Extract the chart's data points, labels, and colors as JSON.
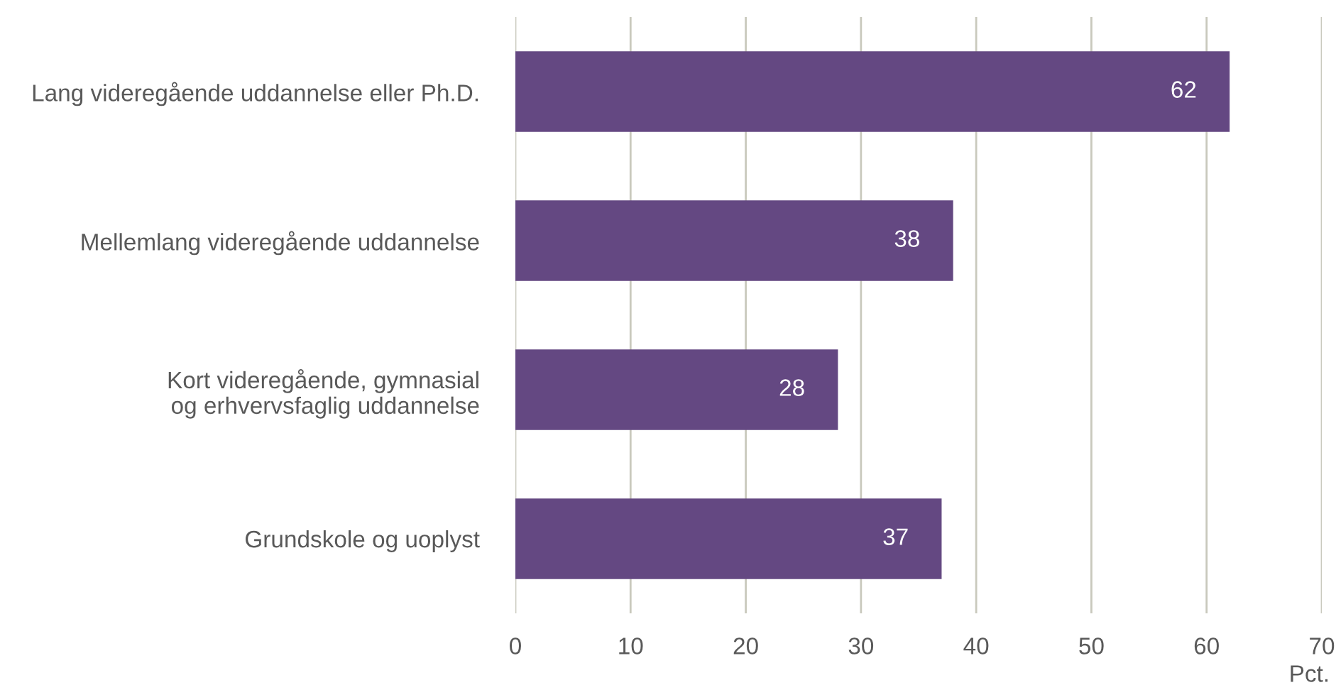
{
  "chart_data": {
    "type": "bar",
    "orientation": "horizontal",
    "xlabel": "Pct.",
    "categories": [
      "Lang videregående uddannelse eller Ph.D.",
      "Mellemlang videregående uddannelse",
      "Kort videregående, gymnasial\nog erhvervsfaglig uddannelse",
      "Grundskole og uoplyst"
    ],
    "values": [
      62,
      38,
      28,
      37
    ],
    "color": "#644882",
    "xlim": [
      0,
      70
    ],
    "xticks": [
      0,
      10,
      20,
      30,
      40,
      50,
      60,
      70
    ],
    "grid": "x",
    "data_labels": true,
    "legend": false
  }
}
